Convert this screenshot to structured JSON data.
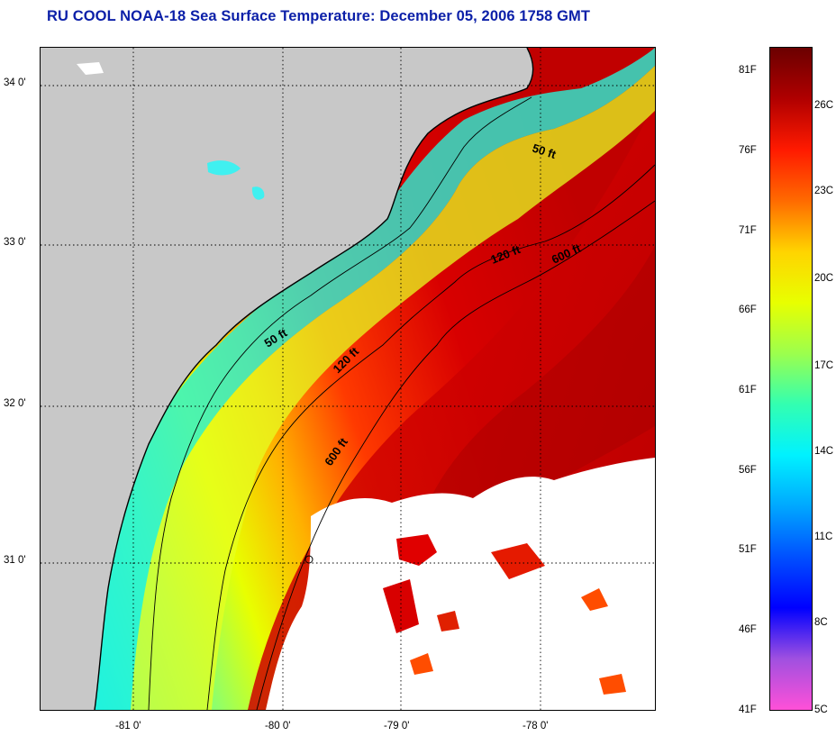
{
  "title": "RU COOL  NOAA-18  Sea Surface Temperature:  December 05, 2006 1758 GMT",
  "latitude_labels": [
    "34 0'",
    "33 0'",
    "32 0'",
    "31 0'"
  ],
  "longitude_labels": [
    "-81 0'",
    "-80 0'",
    "-79 0'",
    "-78 0'"
  ],
  "contours": {
    "fifty_near_north": "50 ft",
    "one_twenty_north": "120 ft",
    "six_hundred_north": "600 ft",
    "fifty_south": "50 ft",
    "one_twenty_south": "120 ft",
    "six_hundred_south": "600 ft"
  },
  "colorbar": {
    "fahrenheit": [
      "81F",
      "76F",
      "71F",
      "66F",
      "61F",
      "56F",
      "51F",
      "46F",
      "41F"
    ],
    "celsius": [
      "26C",
      "23C",
      "20C",
      "17C",
      "14C",
      "11C",
      "8C",
      "5C"
    ],
    "colors": [
      "#6b0000",
      "#b00000",
      "#ff1a00",
      "#ff6a00",
      "#ffd400",
      "#e8ff00",
      "#9cff4d",
      "#33ffb0",
      "#00f2ff",
      "#00a8ff",
      "#0050ff",
      "#0000ff",
      "#a050e0",
      "#ff50d8"
    ]
  },
  "land_color": "#c8c8c8",
  "cloud_color": "#ffffff"
}
